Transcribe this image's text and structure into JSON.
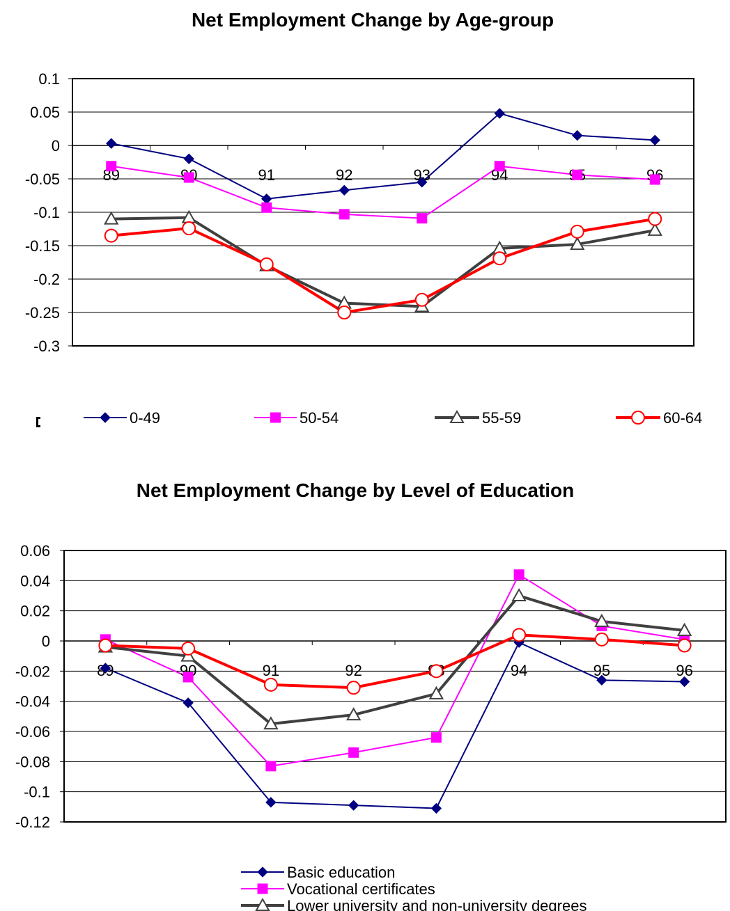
{
  "chart_data": [
    {
      "type": "line",
      "title": "Net Employment Change by Age-group",
      "xlabel": "",
      "ylabel": "",
      "categories": [
        "89",
        "90",
        "91",
        "92",
        "93",
        "94",
        "95",
        "96"
      ],
      "ylim": [
        -0.3,
        0.1
      ],
      "yticks": [
        "0.1",
        "0.05",
        "0",
        "-0.05",
        "-0.1",
        "-0.15",
        "-0.2",
        "-0.25",
        "-0.3"
      ],
      "ytick_values": [
        0.1,
        0.05,
        0,
        -0.05,
        -0.1,
        -0.15,
        -0.2,
        -0.25,
        -0.3
      ],
      "grid": true,
      "legend": "bottom",
      "series": [
        {
          "name": "0-49",
          "color": "#000080",
          "marker": "diamond",
          "width": 2,
          "values": [
            0.003,
            -0.02,
            -0.08,
            -0.067,
            -0.055,
            0.048,
            0.015,
            0.008
          ]
        },
        {
          "name": "50-54",
          "color": "#ff00ff",
          "marker": "square",
          "width": 2,
          "values": [
            -0.031,
            -0.048,
            -0.093,
            -0.103,
            -0.109,
            -0.031,
            -0.044,
            -0.051
          ]
        },
        {
          "name": "55-59",
          "color": "#404040",
          "marker": "triangle",
          "width": 4,
          "values": [
            -0.11,
            -0.108,
            -0.18,
            -0.236,
            -0.241,
            -0.154,
            -0.148,
            -0.127
          ]
        },
        {
          "name": "60-64",
          "color": "#ff0000",
          "marker": "circle",
          "width": 4,
          "values": [
            -0.135,
            -0.124,
            -0.178,
            -0.25,
            -0.231,
            -0.169,
            -0.129,
            -0.11
          ]
        }
      ]
    },
    {
      "type": "line",
      "title": "Net Employment Change by Level of Education",
      "xlabel": "",
      "ylabel": "",
      "categories": [
        "89",
        "90",
        "91",
        "92",
        "93",
        "94",
        "95",
        "96"
      ],
      "ylim": [
        -0.12,
        0.06
      ],
      "yticks": [
        "0.06",
        "0.04",
        "0.02",
        "0",
        "-0.02",
        "-0.04",
        "-0.06",
        "-0.08",
        "-0.1",
        "-0.12"
      ],
      "ytick_values": [
        0.06,
        0.04,
        0.02,
        0,
        -0.02,
        -0.04,
        -0.06,
        -0.08,
        -0.1,
        -0.12
      ],
      "grid": true,
      "legend": "bottom",
      "series": [
        {
          "name": "Basic education",
          "color": "#000080",
          "marker": "diamond",
          "width": 2,
          "values": [
            -0.018,
            -0.041,
            -0.107,
            -0.109,
            -0.111,
            -0.001,
            -0.026,
            -0.027
          ]
        },
        {
          "name": "Vocational certificates",
          "color": "#ff00ff",
          "marker": "square",
          "width": 2,
          "values": [
            0.001,
            -0.024,
            -0.083,
            -0.074,
            -0.064,
            0.044,
            0.01,
            0.001
          ]
        },
        {
          "name": "Lower university and non-university degrees",
          "color": "#404040",
          "marker": "triangle",
          "width": 4,
          "values": [
            -0.004,
            -0.01,
            -0.055,
            -0.049,
            -0.035,
            0.03,
            0.013,
            0.007
          ]
        },
        {
          "name": "",
          "color": "#ff0000",
          "marker": "circle",
          "width": 4,
          "values": [
            -0.003,
            -0.005,
            -0.029,
            -0.031,
            -0.02,
            0.004,
            0.001,
            -0.003
          ]
        }
      ]
    }
  ]
}
